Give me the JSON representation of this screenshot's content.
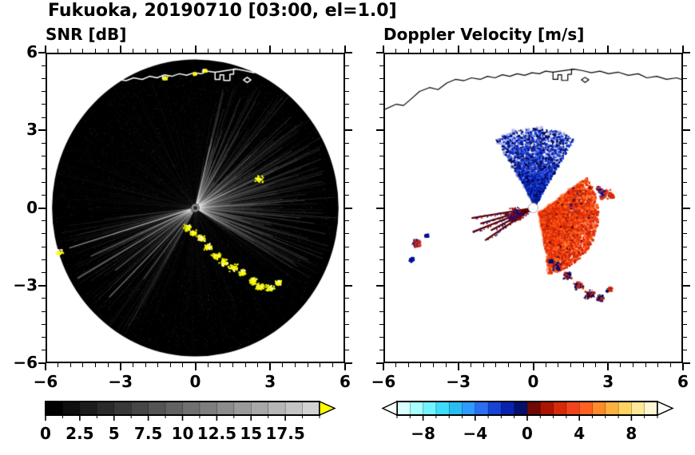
{
  "page_title": "Fukuoka, 20190710 [03:00, el=1.0]",
  "station": "Fukuoka",
  "date": "20190710",
  "time": "03:00",
  "elevation": "el=1.0",
  "panels": {
    "snr": {
      "title": "SNR [dB]",
      "xlim": [
        -6,
        6
      ],
      "ylim": [
        -6,
        6
      ],
      "x_tick_values": [
        -6,
        -3,
        0,
        3,
        6
      ],
      "x_tick_labels": [
        "−6",
        "−3",
        "0",
        "3",
        "6"
      ],
      "y_tick_values": [
        6,
        3,
        0,
        -3,
        -6
      ],
      "y_tick_labels": [
        "6",
        "3",
        "0",
        "−3",
        "−6"
      ],
      "minor_tick_step": 0.5
    },
    "velocity": {
      "title": "Doppler Velocity [m/s]",
      "xlim": [
        -6,
        6
      ],
      "ylim": [
        -6,
        6
      ],
      "x_tick_values": [
        -6,
        -3,
        0,
        3,
        6
      ],
      "x_tick_labels": [
        "−6",
        "−3",
        "0",
        "3",
        "6"
      ],
      "y_tick_values": [
        6,
        3,
        0,
        -3,
        -6
      ],
      "y_tick_labels": [],
      "minor_tick_step": 0.5
    }
  },
  "chart_data": [
    {
      "type": "heatmap",
      "name": "snr_ppi_radar_scan",
      "title": "SNR [dB]",
      "units": "dB",
      "xlim": [
        -6,
        6
      ],
      "ylim": [
        -6,
        6
      ],
      "scan": {
        "center": [
          0,
          0
        ],
        "radius_km": 5.8,
        "background_color": "#000000"
      },
      "colorbar": {
        "range": [
          0,
          20
        ],
        "tick_values": [
          0,
          2.5,
          5,
          7.5,
          10,
          12.5,
          15,
          17.5
        ],
        "tick_labels": [
          "0",
          "2.5",
          "5",
          "7.5",
          "10",
          "12.5",
          "15",
          "17.5"
        ],
        "minor_step": 1.25,
        "segment_colors": [
          "#000000",
          "#0e0e0e",
          "#1c1c1c",
          "#2a2a2a",
          "#383838",
          "#464646",
          "#545454",
          "#626262",
          "#707070",
          "#7e7e7e",
          "#8c8c8c",
          "#9a9a9a",
          "#a8a8a8",
          "#b6b6b6",
          "#c4c4c4",
          "#d2d2d2"
        ],
        "over_arrow_color": "#ffff00"
      },
      "features": {
        "noise_speckle": {
          "count": 7000,
          "max_alpha": 0.22
        },
        "bright_fan": {
          "angle_deg": [
            -35,
            80
          ],
          "ray_count": 320,
          "max_alpha": 0.26
        },
        "lower_left_fan": {
          "angle_deg": [
            186,
            242
          ],
          "ray_count": 150,
          "max_alpha": 0.1
        },
        "bright_rays": [
          {
            "angle_deg": 197,
            "length": 0.92,
            "alpha": 0.5
          },
          {
            "angle_deg": 204,
            "length": 0.8,
            "alpha": 0.38
          },
          {
            "angle_deg": 210,
            "length": 0.95,
            "alpha": 0.45
          },
          {
            "angle_deg": 217,
            "length": 0.7,
            "alpha": 0.3
          },
          {
            "angle_deg": 225,
            "length": 0.85,
            "alpha": 0.4
          },
          {
            "angle_deg": 233,
            "length": 0.6,
            "alpha": 0.25
          }
        ],
        "coast_echoes": [
          [
            -0.35,
            -0.75,
            0.18
          ],
          [
            -0.1,
            -0.95,
            0.16
          ],
          [
            0.2,
            -1.15,
            0.18
          ],
          [
            0.5,
            -1.5,
            0.2
          ],
          [
            0.8,
            -1.85,
            0.2
          ],
          [
            1.1,
            -2.1,
            0.2
          ],
          [
            1.5,
            -2.3,
            0.22
          ],
          [
            1.9,
            -2.5,
            0.18
          ],
          [
            2.3,
            -2.85,
            0.22
          ],
          [
            2.6,
            -3.05,
            0.2
          ],
          [
            3.0,
            -3.1,
            0.18
          ],
          [
            3.35,
            -2.9,
            0.14
          ]
        ],
        "isolated_echoes": [
          [
            2.55,
            1.15,
            0.22
          ],
          [
            -1.25,
            5.1,
            0.12
          ],
          [
            0.35,
            5.4,
            0.1
          ],
          [
            -0.05,
            5.25,
            0.08
          ],
          [
            -5.5,
            -1.7,
            0.16
          ]
        ],
        "echo_colors": [
          "#ffff00",
          "#ffff00",
          "#ffff00",
          "#ffff00",
          "#e6e600",
          "#ffffff"
        ]
      }
    },
    {
      "type": "scatter",
      "name": "doppler_velocity_ppi",
      "title": "Doppler Velocity [m/s]",
      "units": "m/s",
      "xlim": [
        -6,
        6
      ],
      "ylim": [
        -6,
        6
      ],
      "colorbar": {
        "range": [
          -10,
          10
        ],
        "tick_values": [
          -8,
          -4,
          0,
          4,
          8
        ],
        "tick_labels": [
          "−8",
          "−4",
          "0",
          "4",
          "8"
        ],
        "minor_step": 1,
        "segment_colors": [
          "#d9ffff",
          "#a8ffff",
          "#73f3ff",
          "#3edcfa",
          "#27bdf2",
          "#2f9bff",
          "#2a6ef2",
          "#1743d6",
          "#0a23ad",
          "#03106e",
          "#6e0903",
          "#ad1503",
          "#d62a0a",
          "#f1441c",
          "#ff6120",
          "#ff8a2a",
          "#ffb13d",
          "#ffd35e",
          "#ffe999",
          "#fff7d4"
        ],
        "under_arrow_color": "#ffffff",
        "over_arrow_color": "#ffffff"
      },
      "features": {
        "approaching_fan": {
          "angle_deg": [
            58,
            122
          ],
          "r_max": 3.0,
          "count": 2800,
          "center_offset": [
            0.05,
            0.15
          ],
          "colors": [
            "#000d66",
            "#0019a8",
            "#0626c9",
            "#1f3fd9",
            "#00084a",
            "#2a52e8"
          ]
        },
        "receding_blob": {
          "angle_deg": [
            -82,
            38
          ],
          "r_max": 2.35,
          "count": 4200,
          "center_offset": [
            0.25,
            -0.2
          ],
          "colors": [
            "#f23b0f",
            "#e8320a",
            "#ff5512",
            "#d92a08",
            "#ff6a1a",
            "#c21f05"
          ],
          "dark_fraction": 0.04,
          "dark_color": "#7a0a00",
          "noise_color": "#001080"
        },
        "folded_rays": [
          {
            "angle_deg": 189,
            "length": 2.5
          },
          {
            "angle_deg": 196,
            "length": 2.2
          },
          {
            "angle_deg": 201,
            "length": 2.6
          },
          {
            "angle_deg": 207,
            "length": 1.9
          },
          {
            "angle_deg": 213,
            "length": 2.3
          }
        ],
        "ray_colors": [
          "#5e0000",
          "#7a0000",
          "#001090"
        ],
        "west_cluster": {
          "x": -0.8,
          "y": -0.25,
          "s": 0.4,
          "count": 160,
          "colors": [
            "#7a0000",
            "#a30c00",
            "#001090"
          ]
        },
        "patches": [
          {
            "x": 2.85,
            "y": 0.6,
            "s": 0.3,
            "colors": [
              "#f23b0f",
              "#d92a08",
              "#001090"
            ]
          },
          {
            "x": 3.15,
            "y": 0.5,
            "s": 0.12,
            "colors": [
              "#d92a08"
            ]
          },
          {
            "x": 2.6,
            "y": 0.8,
            "s": 0.1,
            "colors": [
              "#f23b0f",
              "#001090"
            ]
          },
          {
            "x": 0.95,
            "y": -2.25,
            "s": 0.22,
            "colors": [
              "#001090",
              "#000d66",
              "#d92a08"
            ]
          },
          {
            "x": 1.35,
            "y": -2.6,
            "s": 0.18,
            "colors": [
              "#000d66",
              "#d92a08"
            ]
          },
          {
            "x": 1.8,
            "y": -3.0,
            "s": 0.2,
            "colors": [
              "#d92a08",
              "#000d66"
            ]
          },
          {
            "x": 2.25,
            "y": -3.35,
            "s": 0.24,
            "colors": [
              "#000d66",
              "#7a0000",
              "#d92a08"
            ]
          },
          {
            "x": 2.7,
            "y": -3.5,
            "s": 0.18,
            "colors": [
              "#000d66",
              "#d92a08"
            ]
          },
          {
            "x": 3.05,
            "y": -3.15,
            "s": 0.13,
            "colors": [
              "#d92a08",
              "#000d66"
            ]
          },
          {
            "x": -4.75,
            "y": -1.35,
            "s": 0.2,
            "colors": [
              "#d92a08",
              "#001090"
            ]
          },
          {
            "x": -4.95,
            "y": -2.0,
            "s": 0.12,
            "colors": [
              "#001090"
            ]
          },
          {
            "x": -4.35,
            "y": -1.05,
            "s": 0.08,
            "colors": [
              "#001090"
            ]
          },
          {
            "x": 0.7,
            "y": -2.05,
            "s": 0.1,
            "colors": [
              "#000d66"
            ]
          }
        ],
        "center_marker": {
          "x": 0,
          "y": 0,
          "radius_px": 6,
          "fill": "#ffffff",
          "stroke": "#aaaaaa"
        }
      }
    }
  ],
  "coastline": {
    "color_on_snr": "#ffffff",
    "color_on_velocity": "#000000",
    "main": [
      [
        -6.0,
        3.85
      ],
      [
        -5.55,
        4.05
      ],
      [
        -5.25,
        4.0
      ],
      [
        -4.95,
        4.25
      ],
      [
        -4.6,
        4.55
      ],
      [
        -4.2,
        4.7
      ],
      [
        -3.85,
        4.62
      ],
      [
        -3.5,
        4.88
      ],
      [
        -3.15,
        5.02
      ],
      [
        -2.8,
        4.97
      ],
      [
        -2.5,
        5.08
      ],
      [
        -2.15,
        5.02
      ],
      [
        -1.85,
        5.14
      ],
      [
        -1.55,
        5.08
      ],
      [
        -1.25,
        5.2
      ],
      [
        -0.95,
        5.14
      ],
      [
        -0.65,
        5.24
      ],
      [
        -0.35,
        5.18
      ],
      [
        -0.05,
        5.28
      ],
      [
        0.25,
        5.24
      ],
      [
        0.5,
        5.34
      ],
      [
        0.8,
        5.3
      ],
      [
        1.65,
        5.42
      ],
      [
        2.0,
        5.36
      ],
      [
        2.35,
        5.28
      ],
      [
        2.7,
        5.34
      ],
      [
        3.05,
        5.24
      ],
      [
        3.45,
        5.3
      ],
      [
        3.85,
        5.18
      ],
      [
        4.25,
        5.24
      ],
      [
        4.6,
        5.08
      ],
      [
        5.0,
        5.14
      ],
      [
        5.4,
        5.02
      ],
      [
        5.8,
        5.08
      ],
      [
        6.0,
        5.02
      ]
    ],
    "harbor": [
      [
        0.8,
        5.3
      ],
      [
        0.8,
        5.02
      ],
      [
        1.0,
        5.02
      ],
      [
        1.0,
        5.2
      ],
      [
        1.15,
        5.2
      ],
      [
        1.15,
        4.98
      ],
      [
        1.4,
        4.98
      ],
      [
        1.4,
        5.22
      ],
      [
        1.55,
        5.22
      ],
      [
        1.55,
        5.42
      ],
      [
        1.65,
        5.42
      ]
    ],
    "island": [
      [
        1.95,
        5.0
      ],
      [
        2.1,
        4.9
      ],
      [
        2.25,
        5.0
      ],
      [
        2.1,
        5.1
      ],
      [
        1.95,
        5.0
      ]
    ]
  }
}
